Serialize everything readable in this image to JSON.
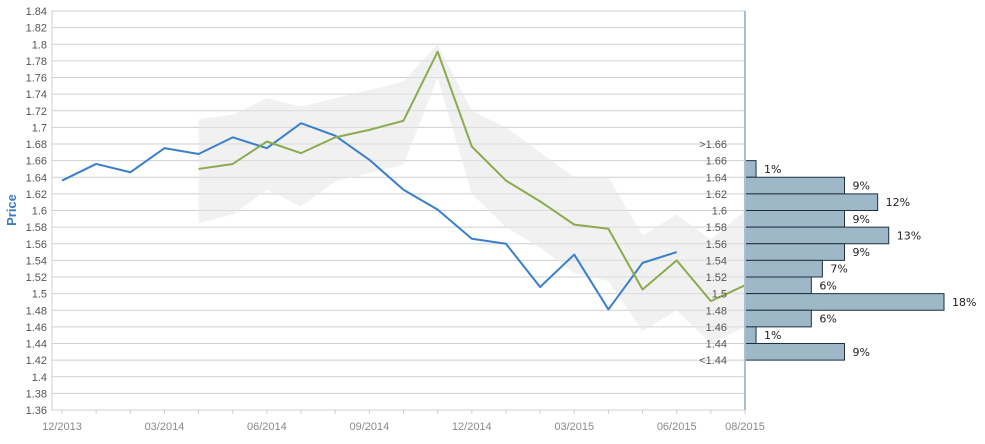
{
  "chart_data": {
    "type": "line",
    "ylabel": "Price",
    "ylim": [
      1.36,
      1.84
    ],
    "y_ticks": [
      "1.36",
      "1.38",
      "1.4",
      "1.42",
      "1.44",
      "1.46",
      "1.48",
      "1.5",
      "1.52",
      "1.54",
      "1.56",
      "1.58",
      "1.6",
      "1.62",
      "1.64",
      "1.66",
      "1.68",
      "1.7",
      "1.72",
      "1.74",
      "1.76",
      "1.78",
      "1.8",
      "1.82",
      "1.84"
    ],
    "x_ticks": [
      "12/2013",
      "03/2014",
      "06/2014",
      "09/2014",
      "12/2014",
      "03/2015",
      "06/2015",
      "08/2015"
    ],
    "grid": true,
    "colors": {
      "series_a": "#3a7fcc",
      "series_b": "#8aab4e",
      "band": "#e6e6e6",
      "bars": "#9fb8c8",
      "bar_border": "#1e3144",
      "axis": "#a9bfcf"
    },
    "series": [
      {
        "color": "#3a7fcc",
        "x": [
          "12/2013",
          "01/2014",
          "02/2014",
          "03/2014",
          "04/2014",
          "05/2014",
          "06/2014",
          "07/2014",
          "08/2014",
          "09/2014",
          "10/2014",
          "11/2014",
          "12/2014",
          "01/2015",
          "02/2015",
          "03/2015",
          "04/2015",
          "05/2015",
          "06/2015"
        ],
        "values": [
          1.636,
          1.656,
          1.646,
          1.675,
          1.668,
          1.688,
          1.675,
          1.705,
          1.69,
          1.661,
          1.625,
          1.601,
          1.566,
          1.56,
          1.508,
          1.547,
          1.481,
          1.537,
          1.55
        ]
      },
      {
        "color": "#8aab4e",
        "x": [
          "04/2014",
          "05/2014",
          "06/2014",
          "07/2014",
          "08/2014",
          "09/2014",
          "10/2014",
          "11/2014",
          "12/2014",
          "01/2015",
          "02/2015",
          "03/2015",
          "04/2015",
          "05/2015",
          "06/2015",
          "07/2015",
          "08/2015"
        ],
        "values": [
          1.65,
          1.656,
          1.683,
          1.669,
          1.688,
          1.697,
          1.708,
          1.791,
          1.677,
          1.636,
          1.611,
          1.583,
          1.578,
          1.505,
          1.54,
          1.491,
          1.51
        ]
      }
    ],
    "band": {
      "x": [
        "04/2014",
        "05/2014",
        "06/2014",
        "07/2014",
        "08/2014",
        "09/2014",
        "10/2014",
        "11/2014",
        "12/2014",
        "01/2015",
        "02/2015",
        "03/2015",
        "04/2015",
        "05/2015",
        "06/2015",
        "07/2015",
        "08/2015"
      ],
      "upper": [
        1.71,
        1.715,
        1.735,
        1.725,
        1.735,
        1.745,
        1.755,
        1.8,
        1.72,
        1.7,
        1.67,
        1.64,
        1.64,
        1.57,
        1.595,
        1.565,
        1.6
      ],
      "lower": [
        1.585,
        1.595,
        1.625,
        1.605,
        1.635,
        1.645,
        1.655,
        1.76,
        1.62,
        1.58,
        1.555,
        1.525,
        1.515,
        1.455,
        1.48,
        1.44,
        1.46
      ]
    },
    "distribution": {
      "bins": [
        ">1.66",
        "1.66",
        "1.64",
        "1.62",
        "1.6",
        "1.58",
        "1.56",
        "1.54",
        "1.52",
        "1.5",
        "1.48",
        "1.46",
        "1.44",
        "<1.44"
      ],
      "percent_labels": [
        "",
        "1%",
        "9%",
        "12%",
        "9%",
        "13%",
        "9%",
        "7%",
        "6%",
        "18%",
        "6%",
        "1%",
        "9%",
        ""
      ],
      "values": [
        0,
        1,
        9,
        12,
        9,
        13,
        9,
        7,
        6,
        18,
        6,
        1,
        9,
        0
      ]
    }
  }
}
